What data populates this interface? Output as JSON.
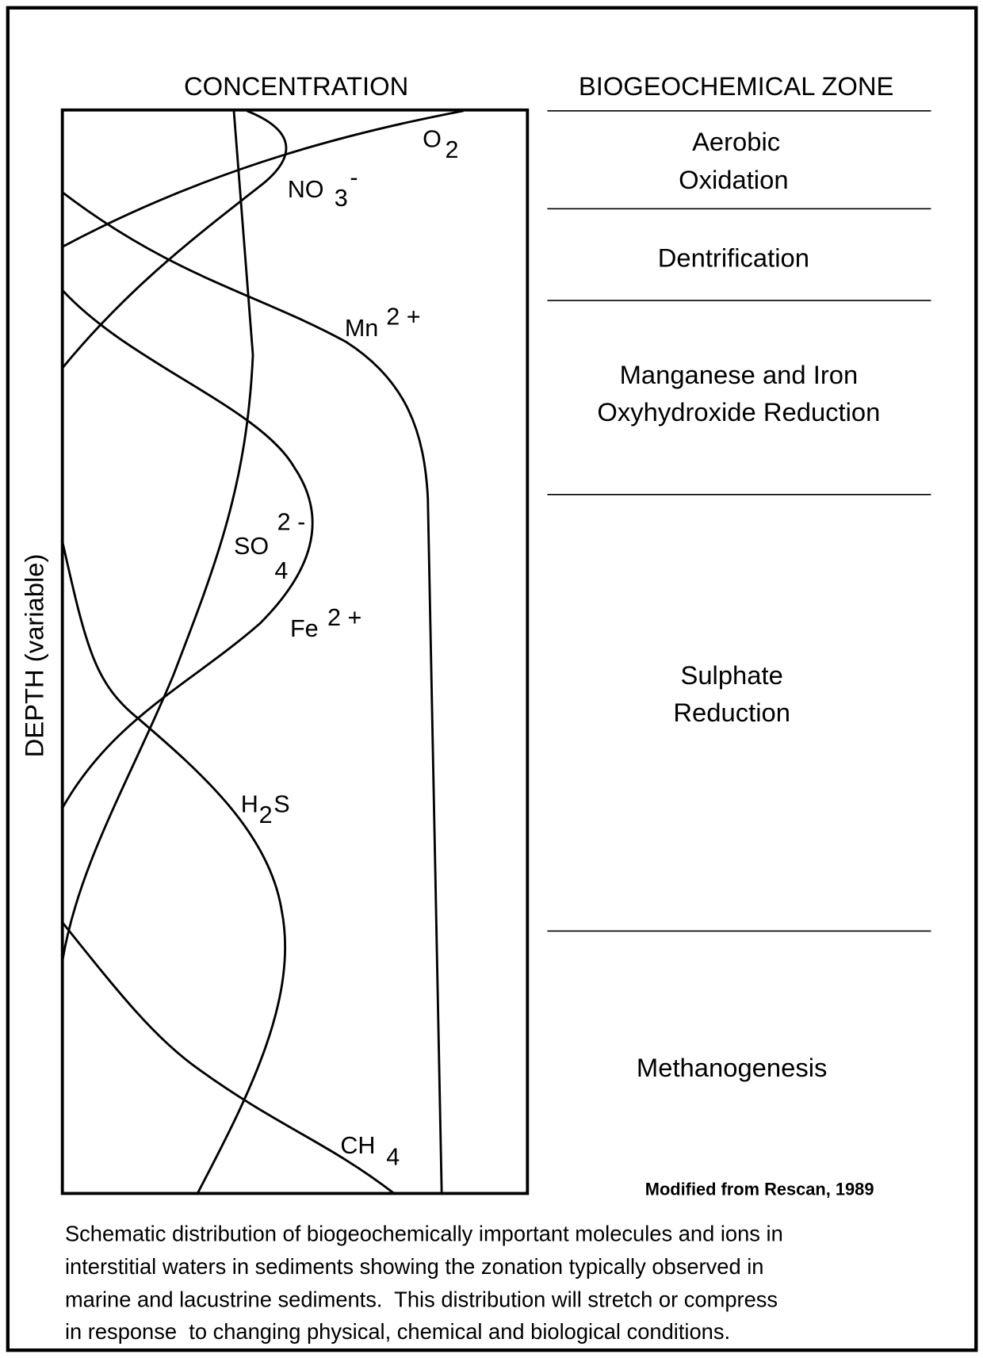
{
  "header": {
    "left": "CONCENTRATION",
    "right": "BIOGEOCHEMICAL ZONE"
  },
  "axis_label": "DEPTH (variable)",
  "species": [
    {
      "base": "O",
      "sub": "2"
    },
    {
      "base": "NO",
      "sub": "3",
      "sup": "-"
    },
    {
      "base": "Mn",
      "sup": "2 +"
    },
    {
      "base": "SO",
      "sub": "4",
      "sup": "2 -"
    },
    {
      "base": "Fe",
      "sup": "2 +"
    },
    {
      "base": "H",
      "sub": "2",
      "tail": "S"
    },
    {
      "base": "CH",
      "sub": "4"
    }
  ],
  "zones": [
    {
      "lines": [
        "Aerobic",
        "Oxidation"
      ]
    },
    {
      "lines": [
        "Dentrification"
      ]
    },
    {
      "lines": [
        "Manganese and Iron",
        "Oxyhydroxide Reduction"
      ]
    },
    {
      "lines": [
        "Sulphate",
        "Reduction"
      ]
    },
    {
      "lines": [
        "Methanogenesis"
      ]
    }
  ],
  "source": "Modified from Rescan, 1989",
  "caption": [
    "Schematic distribution of biogeochemically important molecules and ions in",
    "interstitial waters in sediments showing the zonation typically observed in",
    "marine and lacustrine sediments.  This distribution will stretch or compress",
    "in response  to changing physical, chemical and biological conditions."
  ]
}
